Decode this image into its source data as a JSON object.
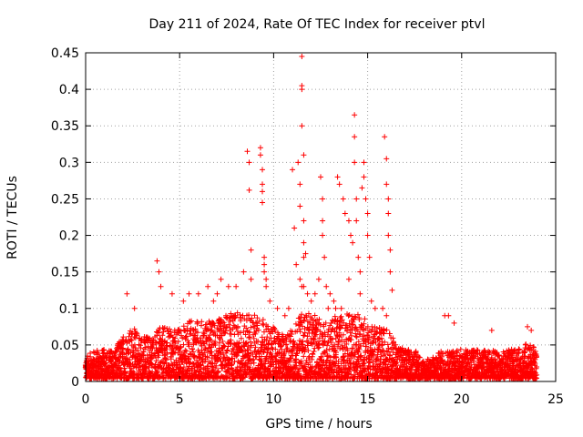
{
  "chart_data": {
    "type": "scatter",
    "title": "Day 211 of 2024, Rate Of TEC Index for receiver ptvl",
    "xlabel": "GPS time / hours",
    "ylabel": "ROTI / TECUs",
    "xlim": [
      0,
      25
    ],
    "ylim": [
      0,
      0.45
    ],
    "x_ticks": [
      0,
      5,
      10,
      15,
      20,
      25
    ],
    "x_tick_labels": [
      "0",
      "5",
      "10",
      "15",
      "20",
      "25"
    ],
    "y_ticks": [
      0,
      0.05,
      0.1,
      0.15,
      0.2,
      0.25,
      0.3,
      0.35,
      0.4,
      0.45
    ],
    "y_tick_labels": [
      "0",
      "0.05",
      "0.1",
      "0.15",
      "0.2",
      "0.25",
      "0.3",
      "0.35",
      "0.4",
      "0.45"
    ],
    "grid": true,
    "marker": "+",
    "color": "#ff0000",
    "series": [
      {
        "name": "ROTI",
        "x": [
          8.6,
          8.7,
          8.7,
          8.8,
          9.3,
          9.3,
          9.4,
          9.4,
          9.4,
          9.4,
          9.5,
          9.5,
          9.5,
          9.6,
          9.6,
          11.0,
          11.1,
          11.3,
          11.4,
          11.4,
          11.5,
          11.5,
          11.5,
          11.5,
          11.6,
          11.6,
          11.6,
          11.6,
          11.7,
          11.8,
          12.5,
          12.6,
          12.6,
          12.6,
          12.7,
          13.4,
          13.5,
          13.7,
          13.8,
          14.0,
          14.1,
          14.2,
          14.3,
          14.3,
          14.3,
          14.4,
          14.4,
          14.5,
          14.6,
          14.7,
          14.8,
          14.8,
          14.9,
          15.0,
          15.0,
          15.1,
          15.9,
          16.0,
          16.0,
          16.1,
          16.1,
          16.1,
          16.2,
          16.2,
          16.3,
          11.2,
          11.4,
          11.5,
          11.6,
          12.0,
          12.2,
          12.4,
          12.8,
          13.0,
          13.2,
          13.6,
          14.0,
          14.6,
          15.2,
          15.4,
          15.8,
          16.0,
          9.8,
          10.2,
          10.6,
          8.4,
          8.8,
          3.8,
          3.9,
          4.0,
          2.2,
          2.6,
          4.6,
          5.2,
          5.5,
          6.0,
          6.5,
          7.2,
          7.6,
          8.0,
          7.0,
          6.8,
          10.8,
          12.9,
          13.3,
          19.1,
          19.3,
          19.6,
          21.6,
          23.5,
          23.7
        ],
        "y": [
          0.315,
          0.3,
          0.262,
          0.18,
          0.32,
          0.31,
          0.29,
          0.27,
          0.26,
          0.245,
          0.17,
          0.16,
          0.15,
          0.14,
          0.13,
          0.29,
          0.21,
          0.3,
          0.27,
          0.24,
          0.445,
          0.405,
          0.4,
          0.35,
          0.31,
          0.22,
          0.19,
          0.17,
          0.175,
          0.12,
          0.28,
          0.25,
          0.22,
          0.2,
          0.17,
          0.28,
          0.27,
          0.25,
          0.23,
          0.22,
          0.2,
          0.19,
          0.365,
          0.335,
          0.3,
          0.25,
          0.22,
          0.17,
          0.15,
          0.265,
          0.3,
          0.28,
          0.25,
          0.23,
          0.2,
          0.17,
          0.335,
          0.305,
          0.27,
          0.25,
          0.23,
          0.2,
          0.18,
          0.15,
          0.125,
          0.16,
          0.14,
          0.13,
          0.13,
          0.11,
          0.12,
          0.14,
          0.13,
          0.12,
          0.11,
          0.1,
          0.14,
          0.12,
          0.11,
          0.1,
          0.1,
          0.09,
          0.11,
          0.1,
          0.09,
          0.15,
          0.14,
          0.165,
          0.15,
          0.13,
          0.12,
          0.1,
          0.12,
          0.11,
          0.12,
          0.12,
          0.13,
          0.14,
          0.13,
          0.13,
          0.12,
          0.11,
          0.1,
          0.1,
          0.1,
          0.09,
          0.09,
          0.08,
          0.07,
          0.075,
          0.07
        ]
      }
    ],
    "density_profile": {
      "note": "ROTI level envelope of the dense band of points near the x axis",
      "x": [
        0,
        0.5,
        1,
        1.5,
        2,
        2.5,
        3,
        3.5,
        4,
        4.5,
        5,
        5.5,
        6,
        6.5,
        7,
        7.5,
        8,
        8.5,
        9,
        9.5,
        10,
        10.5,
        11,
        11.5,
        12,
        12.5,
        13,
        13.5,
        14,
        14.5,
        15,
        15.5,
        16,
        16.5,
        17,
        17.5,
        18,
        18.5,
        19,
        19.5,
        20,
        20.5,
        21,
        21.5,
        22,
        22.5,
        23,
        23.5,
        24
      ],
      "y": [
        0.03,
        0.04,
        0.04,
        0.04,
        0.06,
        0.07,
        0.06,
        0.06,
        0.07,
        0.07,
        0.07,
        0.08,
        0.08,
        0.08,
        0.08,
        0.09,
        0.09,
        0.09,
        0.09,
        0.08,
        0.07,
        0.06,
        0.07,
        0.09,
        0.09,
        0.08,
        0.08,
        0.09,
        0.09,
        0.09,
        0.08,
        0.07,
        0.07,
        0.05,
        0.04,
        0.04,
        0.025,
        0.03,
        0.04,
        0.04,
        0.04,
        0.04,
        0.04,
        0.04,
        0.035,
        0.04,
        0.04,
        0.05,
        0.04
      ]
    }
  }
}
